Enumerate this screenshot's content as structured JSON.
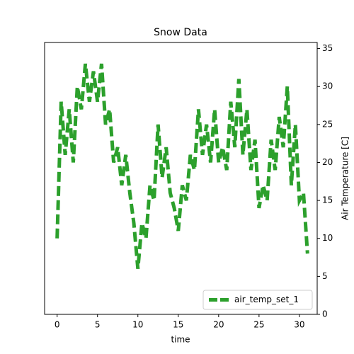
{
  "chart_data": {
    "type": "line",
    "title": "Snow Data",
    "xlabel": "time",
    "ylabel": "Air Temperature [C]",
    "x": [
      0,
      0.5,
      1,
      1.5,
      2,
      2.5,
      3,
      3.5,
      4,
      4.5,
      5,
      5.5,
      6,
      6.5,
      7,
      7.5,
      8,
      8.5,
      9,
      9.5,
      10,
      10.5,
      11,
      11.5,
      12,
      12.5,
      13,
      13.5,
      14,
      14.5,
      15,
      15.5,
      16,
      16.5,
      17,
      17.5,
      18,
      18.5,
      19,
      19.5,
      20,
      20.5,
      21,
      21.5,
      22,
      22.5,
      23,
      23.5,
      24,
      24.5,
      25,
      25.5,
      26,
      26.5,
      27,
      27.5,
      28,
      28.5,
      29,
      29.5,
      30,
      30.5,
      31
    ],
    "series": [
      {
        "name": "air_temp_set_1",
        "color": "#2ca02c",
        "values": [
          10,
          28,
          21,
          27,
          20,
          30,
          27,
          33,
          28,
          32,
          28,
          33,
          25,
          27,
          20,
          22,
          17,
          21,
          16,
          12,
          6,
          12,
          10,
          17,
          15,
          25,
          18,
          22,
          16,
          14,
          11,
          17,
          15,
          21,
          19,
          27,
          21,
          25,
          20,
          27,
          20,
          22,
          19,
          28,
          22,
          31,
          21,
          27,
          19,
          23,
          14,
          17,
          15,
          23,
          19,
          26,
          22,
          30,
          17,
          25,
          15,
          16,
          8
        ]
      }
    ],
    "xlim": [
      -1.55,
      32.2
    ],
    "ylim": [
      0,
      35.8
    ],
    "xticks": [
      0,
      5,
      10,
      15,
      20,
      25,
      30
    ],
    "yticks": [
      0,
      5,
      10,
      15,
      20,
      25,
      30,
      35
    ],
    "legend": "lower right"
  }
}
